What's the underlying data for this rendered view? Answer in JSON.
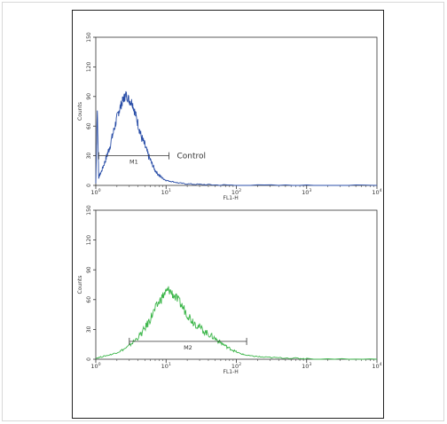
{
  "colors": {
    "control": "#2b4fa8",
    "sample": "#3cb64a",
    "axis": "#333333",
    "marker": "#333333"
  },
  "chart_data": [
    {
      "type": "area",
      "panel": "top",
      "xlabel": "FL1-H",
      "ylabel": "Counts",
      "x_scale": "log",
      "xlim": [
        1,
        10000
      ],
      "ylim": [
        0,
        150
      ],
      "x_ticks": [
        {
          "value": 1,
          "base": "10",
          "exp": "0"
        },
        {
          "value": 10,
          "base": "10",
          "exp": "1"
        },
        {
          "value": 100,
          "base": "10",
          "exp": "2"
        },
        {
          "value": 1000,
          "base": "10",
          "exp": "3"
        },
        {
          "value": 10000,
          "base": "10",
          "exp": "4"
        }
      ],
      "y_ticks": [
        "0",
        "30",
        "60",
        "90",
        "120",
        "150"
      ],
      "y_tick_values": [
        0,
        30,
        60,
        90,
        120,
        150
      ],
      "series": [
        {
          "name": "Control",
          "color": "#2b4fa8",
          "x": [
            1,
            1.05,
            1.1,
            1.2,
            1.35,
            1.5,
            1.7,
            1.9,
            2.1,
            2.3,
            2.5,
            2.7,
            3.0,
            3.3,
            3.6,
            4.0,
            4.4,
            5.0,
            5.6,
            6.3,
            7.0,
            8.0,
            9.0,
            10,
            12,
            15,
            20,
            30,
            50,
            100,
            1000,
            10000
          ],
          "y": [
            2,
            78,
            8,
            14,
            24,
            34,
            48,
            62,
            74,
            82,
            88,
            92,
            86,
            84,
            74,
            62,
            50,
            40,
            30,
            22,
            15,
            10,
            7,
            5,
            4,
            2.5,
            1.5,
            1,
            0.5,
            0.2,
            0,
            0
          ]
        }
      ],
      "marker": {
        "label": "M1",
        "range": [
          1.1,
          11
        ]
      },
      "annotation": "Control"
    },
    {
      "type": "area",
      "panel": "bottom",
      "xlabel": "FL1-H",
      "ylabel": "Counts",
      "x_scale": "log",
      "xlim": [
        1,
        10000
      ],
      "ylim": [
        0,
        150
      ],
      "x_ticks": [
        {
          "value": 1,
          "base": "10",
          "exp": "0"
        },
        {
          "value": 10,
          "base": "10",
          "exp": "1"
        },
        {
          "value": 100,
          "base": "10",
          "exp": "2"
        },
        {
          "value": 1000,
          "base": "10",
          "exp": "3"
        },
        {
          "value": 10000,
          "base": "10",
          "exp": "4"
        }
      ],
      "y_ticks": [
        "0",
        "30",
        "60",
        "90",
        "120",
        "150"
      ],
      "y_tick_values": [
        0,
        30,
        60,
        90,
        120,
        150
      ],
      "series": [
        {
          "color": "#3cb64a",
          "x": [
            1,
            1.3,
            1.7,
            2.2,
            2.8,
            3.5,
            4.5,
            5.5,
            6.5,
            8,
            9.5,
            11,
            13,
            16,
            19,
            23,
            28,
            35,
            43,
            52,
            62,
            75,
            90,
            110,
            140,
            180,
            250,
            400,
            700,
            1000,
            10000
          ],
          "y": [
            1,
            3,
            5,
            8,
            12,
            18,
            26,
            36,
            46,
            58,
            66,
            70,
            64,
            56,
            48,
            40,
            34,
            28,
            24,
            20,
            16,
            12,
            9,
            6,
            4,
            3,
            2,
            1.5,
            1,
            0.5,
            0
          ]
        }
      ],
      "marker": {
        "label": "M2",
        "range": [
          3,
          140
        ]
      }
    }
  ]
}
